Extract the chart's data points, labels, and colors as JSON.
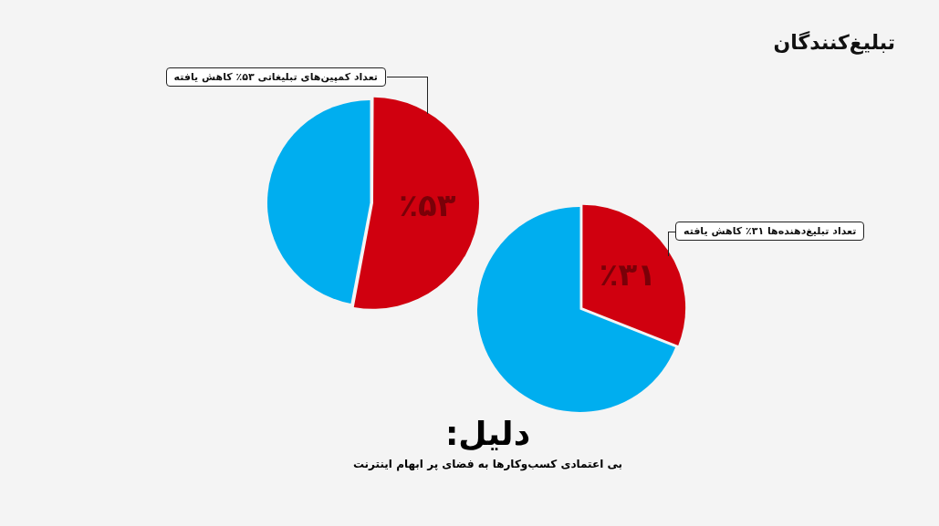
{
  "chart_data": [
    {
      "type": "pie",
      "categories": [
        null,
        null
      ],
      "values": [
        53,
        47
      ],
      "colors": [
        "#d0000f",
        "#00aeef"
      ],
      "value_labels": [
        "٪۵۳",
        null
      ],
      "annotations": [
        "تعداد کمپین‌های تبلیغاتی ۵۳٪ کاهش یافته"
      ]
    },
    {
      "type": "pie",
      "categories": [
        null,
        null
      ],
      "values": [
        31,
        69
      ],
      "colors": [
        "#d0000f",
        "#00aeef"
      ],
      "value_labels": [
        "٪۳۱",
        null
      ],
      "annotations": [
        "تعداد تبلیغ‌دهنده‌ها ۳۱٪ کاهش یافته"
      ]
    },
    {
      "type": "other",
      "title": "تبلیغ‌کنندگان",
      "annotations": [
        "دلیل:",
        "بی اعتمادی کسب‌وکارها به فضای پر ابهام اینترنت"
      ]
    }
  ]
}
